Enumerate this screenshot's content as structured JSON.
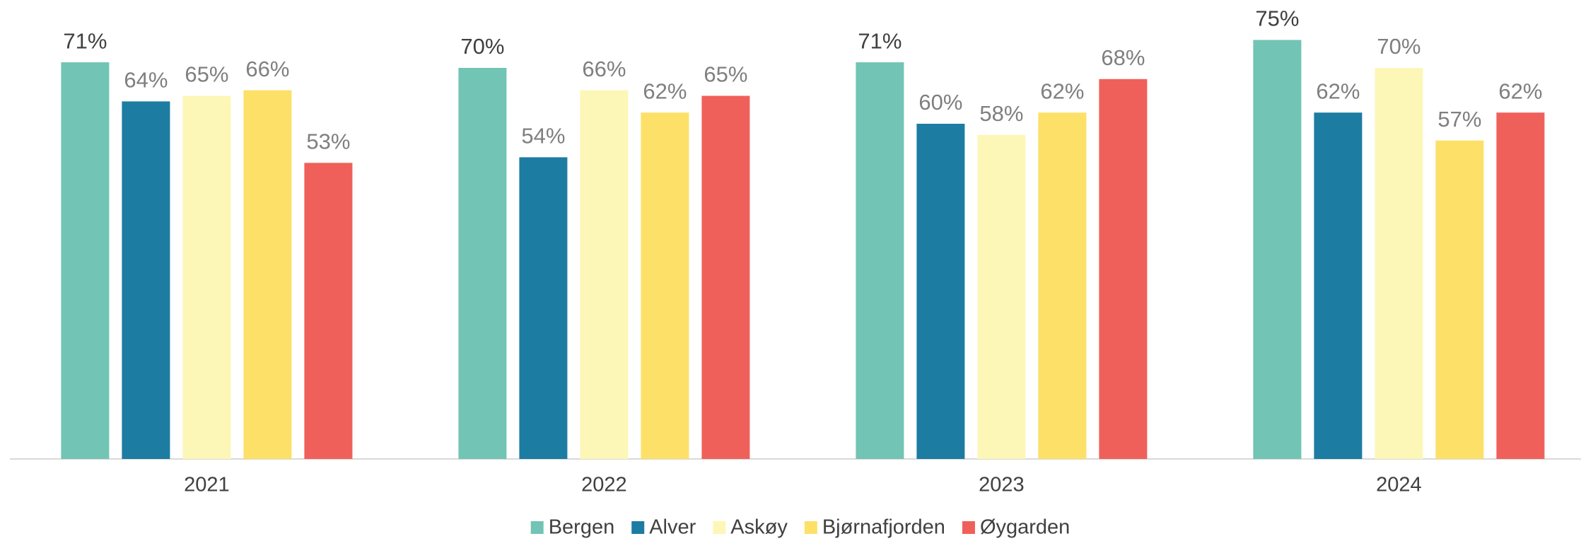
{
  "chart_data": {
    "type": "bar",
    "categories": [
      "2021",
      "2022",
      "2023",
      "2024"
    ],
    "series": [
      {
        "name": "Bergen",
        "color": "#72c4b4",
        "values": [
          71,
          70,
          71,
          75
        ],
        "value_labels": [
          "71%",
          "70%",
          "71%",
          "75%"
        ]
      },
      {
        "name": "Alver",
        "color": "#1d7ca2",
        "values": [
          64,
          54,
          60,
          62
        ],
        "value_labels": [
          "64%",
          "54%",
          "60%",
          "62%"
        ]
      },
      {
        "name": "Askøy",
        "color": "#fcf7b7",
        "values": [
          65,
          66,
          58,
          70
        ],
        "value_labels": [
          "65%",
          "66%",
          "58%",
          "70%"
        ]
      },
      {
        "name": "Bjørnafjorden",
        "color": "#fde068",
        "values": [
          66,
          62,
          62,
          57
        ],
        "value_labels": [
          "66%",
          "62%",
          "62%",
          "57%"
        ]
      },
      {
        "name": "Øygarden",
        "color": "#f0605a",
        "values": [
          53,
          65,
          68,
          62
        ],
        "value_labels": [
          "53%",
          "65%",
          "68%",
          "62%"
        ]
      }
    ],
    "ylim": [
      0,
      80
    ],
    "legend": "bottom"
  }
}
